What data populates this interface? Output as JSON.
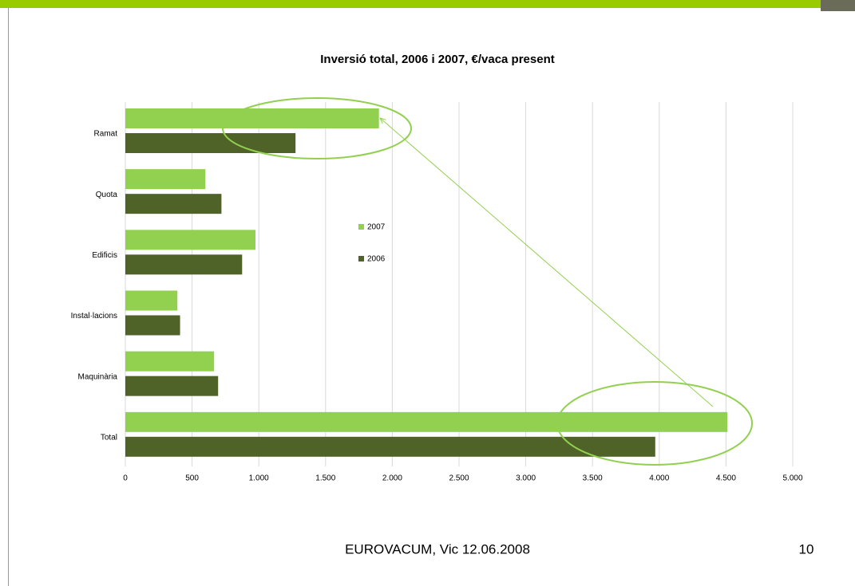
{
  "chart_data": {
    "type": "barh",
    "title": "Inversió total, 2006 i 2007, €/vaca present",
    "categories": [
      "Ramat",
      "Quota",
      "Edificis",
      "Instal·lacions",
      "Maquinària",
      "Total"
    ],
    "series": [
      {
        "name": "2007",
        "color": "#92d050",
        "values": [
          1900,
          600,
          975,
          390,
          665,
          4510
        ]
      },
      {
        "name": "2006",
        "color": "#4f6228",
        "values": [
          1275,
          720,
          875,
          410,
          695,
          3970
        ]
      }
    ],
    "xlim": [
      0,
      5000
    ],
    "xticks": [
      0,
      500,
      {
        "value": 1000,
        "label": "1.000"
      },
      {
        "value": 1500,
        "label": "1.500"
      },
      {
        "value": 2000,
        "label": "2.000"
      },
      {
        "value": 2500,
        "label": "2.500"
      },
      {
        "value": 3000,
        "label": "3.000"
      },
      {
        "value": 3500,
        "label": "3.500"
      },
      {
        "value": 4000,
        "label": "4.000"
      },
      {
        "value": 4500,
        "label": "4.500"
      },
      {
        "value": 5000,
        "label": "5.000"
      }
    ],
    "grid": true
  },
  "footer": {
    "text": "EUROVACUM, Vic 12.06.2008",
    "page": "10"
  }
}
